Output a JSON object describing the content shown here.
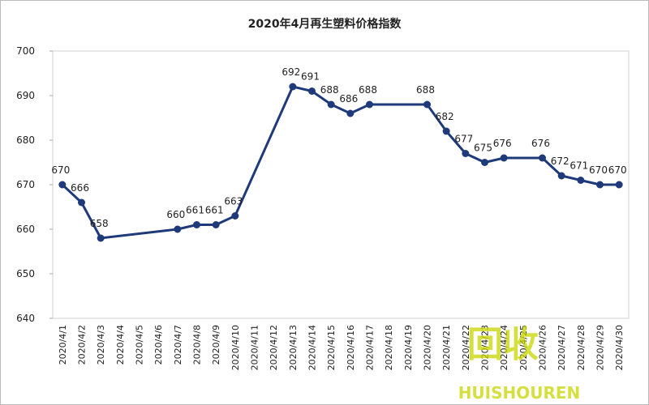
{
  "chart_data": {
    "type": "line",
    "title": "2020年4月再生塑料价格指数",
    "categories": [
      "2020/4/1",
      "2020/4/2",
      "2020/4/3",
      "2020/4/4",
      "2020/4/5",
      "2020/4/6",
      "2020/4/7",
      "2020/4/8",
      "2020/4/9",
      "2020/4/10",
      "2020/4/11",
      "2020/4/12",
      "2020/4/13",
      "2020/4/14",
      "2020/4/15",
      "2020/4/16",
      "2020/4/17",
      "2020/4/18",
      "2020/4/19",
      "2020/4/20",
      "2020/4/21",
      "2020/4/22",
      "2020/4/23",
      "2020/4/24",
      "2020/4/25",
      "2020/4/26",
      "2020/4/27",
      "2020/4/28",
      "2020/4/29",
      "2020/4/30"
    ],
    "x": [
      "2020/4/1",
      "2020/4/2",
      "2020/4/3",
      "2020/4/7",
      "2020/4/8",
      "2020/4/9",
      "2020/4/10",
      "2020/4/13",
      "2020/4/14",
      "2020/4/15",
      "2020/4/16",
      "2020/4/17",
      "2020/4/20",
      "2020/4/21",
      "2020/4/22",
      "2020/4/23",
      "2020/4/24",
      "2020/4/26",
      "2020/4/27",
      "2020/4/28",
      "2020/4/29",
      "2020/4/30"
    ],
    "series": [
      {
        "color": "#1f3a7a",
        "values": [
          670,
          666,
          658,
          660,
          661,
          661,
          663,
          692,
          691,
          688,
          686,
          688,
          688,
          682,
          677,
          675,
          676,
          676,
          672,
          671,
          670,
          670
        ]
      }
    ],
    "ylim": [
      640,
      700
    ],
    "yticks": [
      640,
      650,
      660,
      670,
      680,
      690,
      700
    ],
    "watermark": {
      "logo": "回收",
      "text": "HUISHOUREN"
    }
  }
}
